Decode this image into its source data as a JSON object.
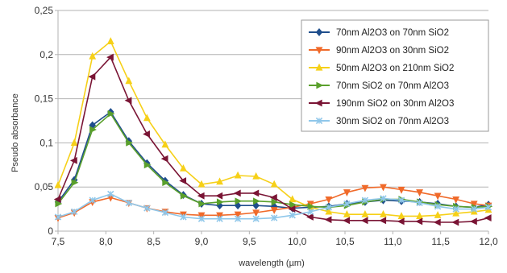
{
  "chart_data": {
    "type": "line",
    "title": "",
    "xlabel": "wavelength (µm)",
    "ylabel": "Pseudo absorbance",
    "xlim": [
      7.5,
      12.0
    ],
    "ylim": [
      0,
      0.25
    ],
    "x_ticks": [
      "7,5",
      "8,0",
      "8,5",
      "9,0",
      "9,5",
      "10,0",
      "10,5",
      "11,0",
      "11,5",
      "12,0"
    ],
    "y_ticks": [
      "0",
      "0,05",
      "0,1",
      "0,15",
      "0,2",
      "0,25"
    ],
    "grid": "horizontal",
    "legend_position": "top-right",
    "series": [
      {
        "name": "70nm Al2O3 on 70nm SiO2",
        "color": "#1f4e8c",
        "marker": "diamond",
        "x": [
          7.5,
          7.67,
          7.86,
          8.05,
          8.24,
          8.43,
          8.62,
          8.81,
          9.0,
          9.19,
          9.38,
          9.57,
          9.76,
          9.95,
          10.14,
          10.33,
          10.52,
          10.71,
          10.9,
          11.09,
          11.28,
          11.47,
          11.66,
          11.85,
          12.0
        ],
        "y": [
          0.033,
          0.058,
          0.12,
          0.135,
          0.102,
          0.077,
          0.057,
          0.041,
          0.031,
          0.029,
          0.029,
          0.029,
          0.028,
          0.026,
          0.027,
          0.028,
          0.031,
          0.033,
          0.035,
          0.034,
          0.033,
          0.031,
          0.028,
          0.027,
          0.03
        ]
      },
      {
        "name": "90nm Al2O3 on 30nm SiO2",
        "color": "#f06a2a",
        "marker": "triangle-down",
        "x": [
          7.5,
          7.67,
          7.86,
          8.05,
          8.24,
          8.43,
          8.62,
          8.81,
          9.0,
          9.19,
          9.38,
          9.57,
          9.76,
          9.95,
          10.14,
          10.33,
          10.52,
          10.71,
          10.9,
          11.09,
          11.28,
          11.47,
          11.66,
          11.85,
          12.0
        ],
        "y": [
          0.015,
          0.021,
          0.033,
          0.038,
          0.032,
          0.026,
          0.022,
          0.019,
          0.018,
          0.018,
          0.019,
          0.021,
          0.024,
          0.027,
          0.031,
          0.036,
          0.044,
          0.049,
          0.05,
          0.047,
          0.044,
          0.04,
          0.036,
          0.031,
          0.029
        ]
      },
      {
        "name": "50nm Al2O3 on 210nm SiO2",
        "color": "#f6d018",
        "marker": "triangle-up",
        "x": [
          7.5,
          7.67,
          7.86,
          8.05,
          8.24,
          8.43,
          8.62,
          8.81,
          9.0,
          9.19,
          9.38,
          9.57,
          9.76,
          9.95,
          10.14,
          10.33,
          10.52,
          10.71,
          10.9,
          11.09,
          11.28,
          11.47,
          11.66,
          11.85,
          12.0
        ],
        "y": [
          0.052,
          0.1,
          0.198,
          0.215,
          0.17,
          0.128,
          0.098,
          0.071,
          0.053,
          0.056,
          0.063,
          0.062,
          0.053,
          0.036,
          0.027,
          0.022,
          0.019,
          0.019,
          0.019,
          0.017,
          0.017,
          0.018,
          0.02,
          0.022,
          0.024
        ]
      },
      {
        "name": "70nm SiO2 on 70nm Al2O3",
        "color": "#5aa02c",
        "marker": "triangle-right",
        "x": [
          7.5,
          7.67,
          7.86,
          8.05,
          8.24,
          8.43,
          8.62,
          8.81,
          9.0,
          9.19,
          9.38,
          9.57,
          9.76,
          9.95,
          10.14,
          10.33,
          10.52,
          10.71,
          10.9,
          11.09,
          11.28,
          11.47,
          11.66,
          11.85,
          12.0
        ],
        "y": [
          0.031,
          0.055,
          0.115,
          0.133,
          0.1,
          0.075,
          0.055,
          0.04,
          0.031,
          0.033,
          0.034,
          0.034,
          0.033,
          0.03,
          0.028,
          0.027,
          0.029,
          0.033,
          0.036,
          0.036,
          0.033,
          0.03,
          0.028,
          0.027,
          0.028
        ]
      },
      {
        "name": "190nm SiO2 on 30nm Al2O3",
        "color": "#7a1535",
        "marker": "triangle-left",
        "x": [
          7.5,
          7.67,
          7.86,
          8.05,
          8.24,
          8.43,
          8.62,
          8.81,
          9.0,
          9.19,
          9.38,
          9.57,
          9.76,
          9.95,
          10.14,
          10.33,
          10.52,
          10.71,
          10.9,
          11.09,
          11.28,
          11.47,
          11.66,
          11.85,
          12.0
        ],
        "y": [
          0.036,
          0.08,
          0.175,
          0.197,
          0.148,
          0.11,
          0.082,
          0.057,
          0.04,
          0.04,
          0.043,
          0.043,
          0.038,
          0.025,
          0.016,
          0.013,
          0.012,
          0.012,
          0.012,
          0.011,
          0.011,
          0.01,
          0.01,
          0.011,
          0.015
        ]
      },
      {
        "name": "30nm SiO2 on 70nm Al2O3",
        "color": "#8fc7ea",
        "marker": "x",
        "x": [
          7.5,
          7.67,
          7.86,
          8.05,
          8.24,
          8.43,
          8.62,
          8.81,
          9.0,
          9.19,
          9.38,
          9.57,
          9.76,
          9.95,
          10.14,
          10.33,
          10.52,
          10.71,
          10.9,
          11.09,
          11.28,
          11.47,
          11.66,
          11.85,
          12.0
        ],
        "y": [
          0.016,
          0.022,
          0.035,
          0.042,
          0.032,
          0.026,
          0.021,
          0.016,
          0.014,
          0.014,
          0.014,
          0.014,
          0.015,
          0.018,
          0.022,
          0.027,
          0.031,
          0.035,
          0.037,
          0.035,
          0.032,
          0.028,
          0.025,
          0.025,
          0.027
        ]
      }
    ]
  }
}
